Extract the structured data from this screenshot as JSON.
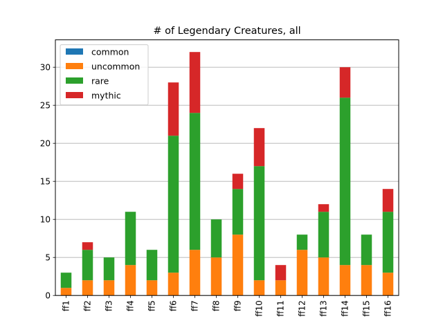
{
  "chart_data": {
    "type": "bar",
    "stacked": true,
    "title": "# of Legendary Creatures, all",
    "xlabel": "",
    "ylabel": "",
    "categories": [
      "ff1",
      "ff2",
      "ff3",
      "ff4",
      "ff5",
      "ff6",
      "ff7",
      "ff8",
      "ff9",
      "ff10",
      "ff11",
      "ff12",
      "ff13",
      "ff14",
      "ff15",
      "ff16"
    ],
    "series": [
      {
        "name": "common",
        "color": "#1f77b4",
        "values": [
          0,
          0,
          0,
          0,
          0,
          0,
          0,
          0,
          0,
          0,
          0,
          0,
          0,
          0,
          0,
          0
        ]
      },
      {
        "name": "uncommon",
        "color": "#ff7f0e",
        "values": [
          1,
          2,
          2,
          4,
          2,
          3,
          6,
          5,
          8,
          2,
          2,
          6,
          5,
          4,
          4,
          3
        ]
      },
      {
        "name": "rare",
        "color": "#2ca02c",
        "values": [
          2,
          4,
          3,
          7,
          4,
          18,
          18,
          5,
          6,
          15,
          0,
          2,
          6,
          22,
          4,
          8
        ]
      },
      {
        "name": "mythic",
        "color": "#d62728",
        "values": [
          0,
          1,
          0,
          0,
          0,
          7,
          8,
          0,
          2,
          5,
          2,
          0,
          1,
          4,
          0,
          3
        ]
      }
    ],
    "ylim": [
      0,
      33.6
    ],
    "yticks": [
      "0",
      "5",
      "10",
      "15",
      "20",
      "25",
      "30"
    ],
    "grid": "y",
    "legend_position": "upper-left"
  }
}
